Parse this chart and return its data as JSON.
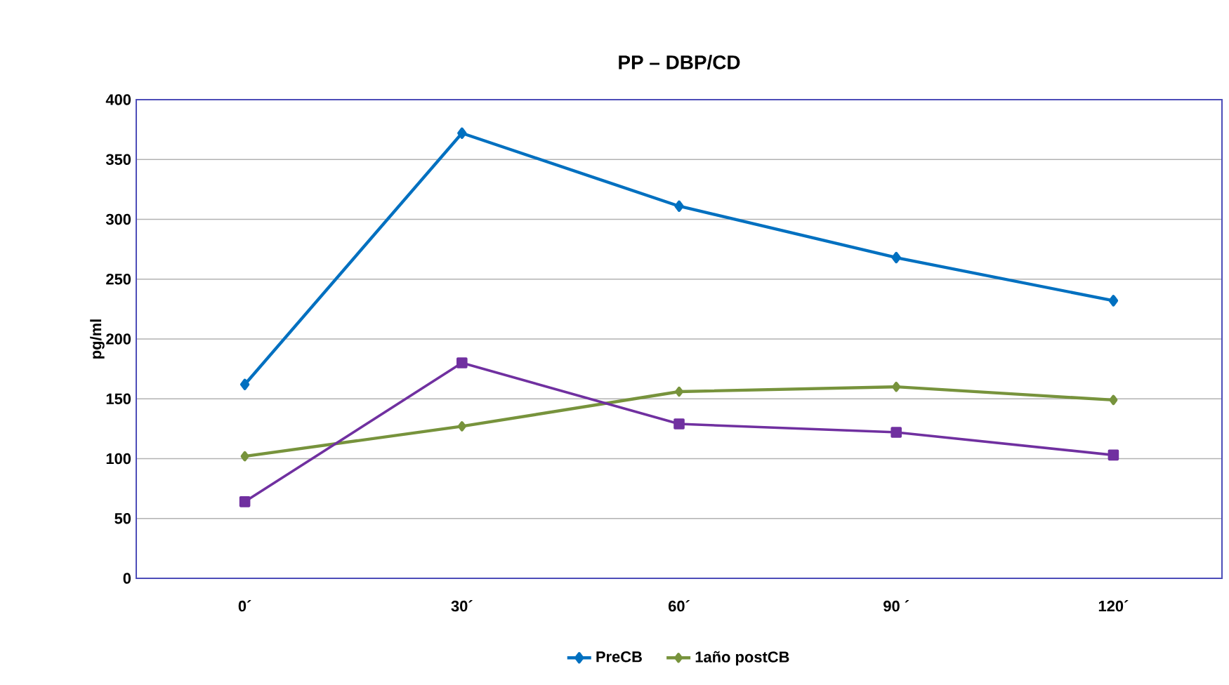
{
  "chart_data": {
    "type": "line",
    "title": "PP – DBP/CD",
    "ylabel": "pg/ml",
    "categories": [
      "0´",
      "30´",
      "60´",
      "90 ´",
      "120´"
    ],
    "series": [
      {
        "name": "PreCB",
        "color": "#0070c0",
        "marker": "diamond",
        "values": [
          162,
          372,
          311,
          268,
          232
        ]
      },
      {
        "name": "1año postCB",
        "color": "#77933c",
        "marker": "diamond",
        "values": [
          102,
          127,
          156,
          160,
          149
        ]
      },
      {
        "color": "#7030a0",
        "marker": "square",
        "values": [
          64,
          180,
          129,
          122,
          103
        ]
      }
    ],
    "ylim": [
      0,
      400
    ],
    "yticks": [
      0,
      50,
      100,
      150,
      200,
      250,
      300,
      350,
      400
    ],
    "grid": "y",
    "legend": "bottom",
    "line_style": "solid"
  }
}
